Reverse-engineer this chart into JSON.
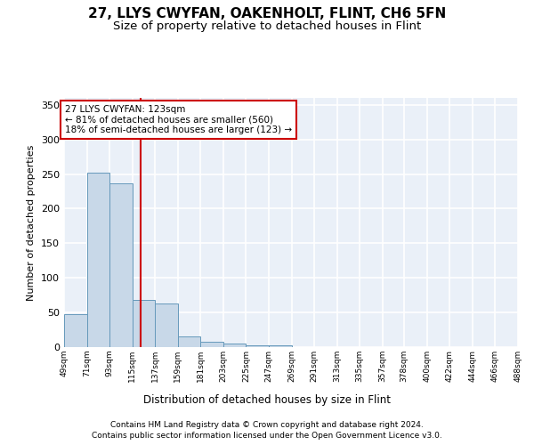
{
  "title": "27, LLYS CWYFAN, OAKENHOLT, FLINT, CH6 5FN",
  "subtitle": "Size of property relative to detached houses in Flint",
  "xlabel": "Distribution of detached houses by size in Flint",
  "ylabel": "Number of detached properties",
  "footer_line1": "Contains HM Land Registry data © Crown copyright and database right 2024.",
  "footer_line2": "Contains public sector information licensed under the Open Government Licence v3.0.",
  "annotation_line1": "27 LLYS CWYFAN: 123sqm",
  "annotation_line2": "← 81% of detached houses are smaller (560)",
  "annotation_line3": "18% of semi-detached houses are larger (123) →",
  "bar_edges": [
    49,
    71,
    93,
    115,
    137,
    159,
    181,
    203,
    225,
    247,
    269,
    291,
    313,
    335,
    357,
    378,
    400,
    422,
    444,
    466,
    488
  ],
  "bar_heights": [
    48,
    252,
    236,
    68,
    63,
    16,
    8,
    5,
    3,
    3,
    0,
    0,
    0,
    0,
    0,
    0,
    0,
    0,
    0,
    0
  ],
  "bar_color": "#c8d8e8",
  "bar_edge_color": "#6699bb",
  "vline_x": 123,
  "vline_color": "#cc0000",
  "ylim": [
    0,
    360
  ],
  "yticks": [
    0,
    50,
    100,
    150,
    200,
    250,
    300,
    350
  ],
  "plot_bg_color": "#eaf0f8",
  "grid_color": "#ffffff",
  "annotation_box_color": "#cc0000",
  "title_fontsize": 11,
  "subtitle_fontsize": 9.5
}
